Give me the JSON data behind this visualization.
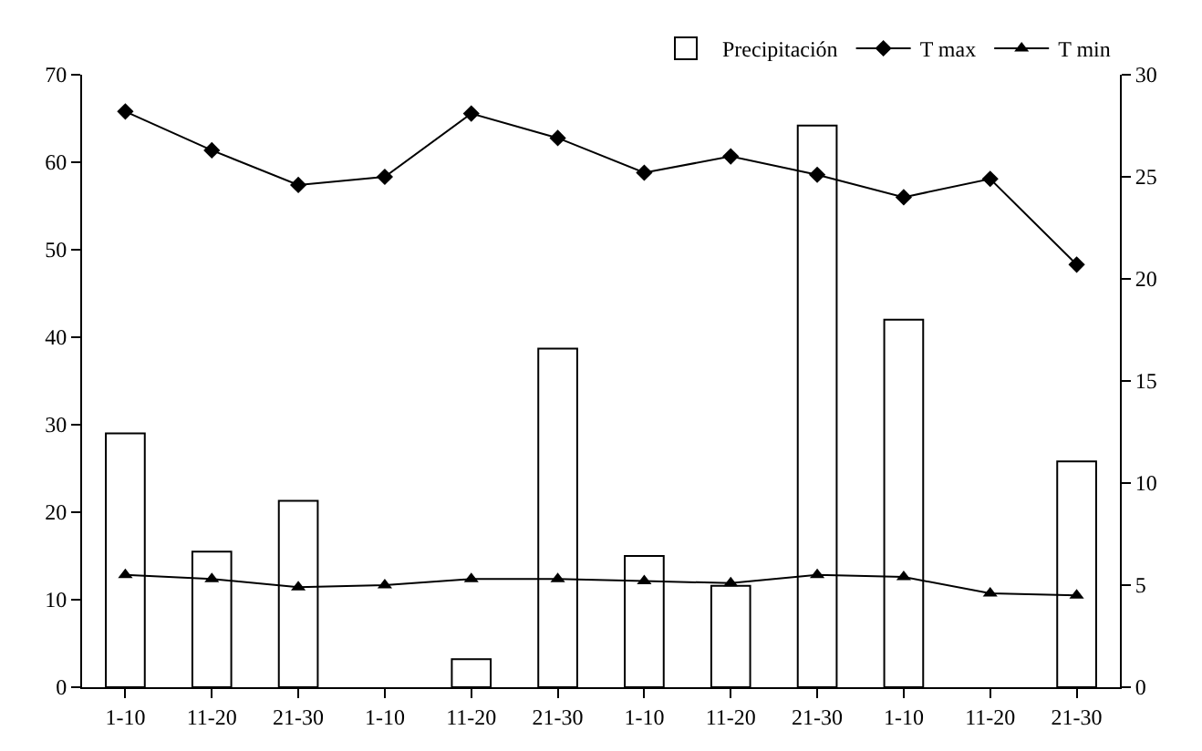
{
  "chart_data": {
    "type": "bar",
    "categories": [
      "1-10",
      "11-20",
      "21-30",
      "1-10",
      "11-20",
      "21-30",
      "1-10",
      "11-20",
      "21-30",
      "1-10",
      "11-20",
      "21-30"
    ],
    "series": [
      {
        "name": "Precipitación",
        "color": "#ffffff",
        "values": [
          29,
          15.5,
          21.3,
          0,
          3.2,
          38.7,
          15,
          11.6,
          64.2,
          42,
          0,
          25.8
        ]
      },
      {
        "name": "T max",
        "type": "line",
        "color": "#000000",
        "marker": "diamond",
        "axis": "y2",
        "values": [
          28.2,
          26.3,
          24.6,
          25.0,
          28.1,
          26.9,
          25.2,
          26.0,
          25.1,
          24.0,
          24.9,
          20.7
        ]
      },
      {
        "name": "T min",
        "type": "line",
        "color": "#000000",
        "marker": "triangle",
        "axis": "y2",
        "values": [
          5.5,
          5.3,
          4.9,
          5.0,
          5.3,
          5.3,
          5.2,
          5.1,
          5.5,
          5.4,
          4.6,
          4.5
        ]
      }
    ],
    "ylim": [
      0,
      70
    ],
    "yticks": [
      0,
      10,
      20,
      30,
      40,
      50,
      60,
      70
    ],
    "y2lim": [
      0,
      30
    ],
    "y2ticks": [
      0,
      5,
      10,
      15,
      20,
      25,
      30
    ],
    "grid": false,
    "legend": "top right"
  }
}
